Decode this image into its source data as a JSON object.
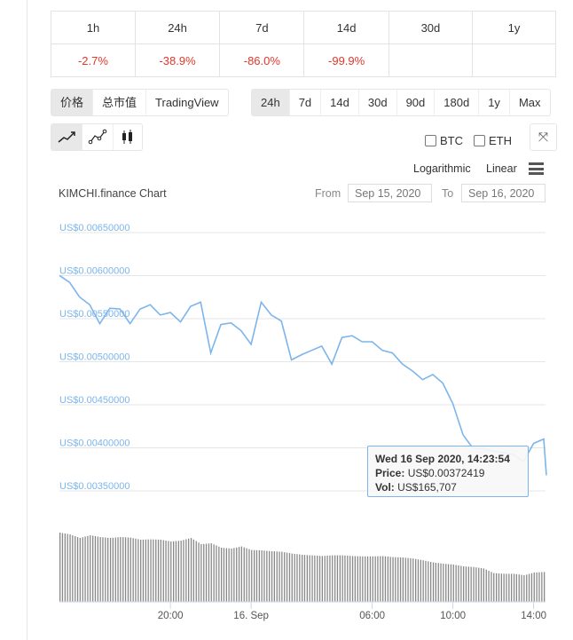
{
  "performance": {
    "headers": [
      "1h",
      "24h",
      "7d",
      "14d",
      "30d",
      "1y"
    ],
    "values": [
      "-2.7%",
      "-38.9%",
      "-86.0%",
      "-99.9%",
      "",
      ""
    ]
  },
  "chart_type_tabs": [
    {
      "label": "价格",
      "active": true
    },
    {
      "label": "总市值",
      "active": false
    },
    {
      "label": "TradingView",
      "active": false
    }
  ],
  "range_tabs": [
    {
      "label": "24h",
      "active": true
    },
    {
      "label": "7d"
    },
    {
      "label": "14d"
    },
    {
      "label": "30d"
    },
    {
      "label": "90d"
    },
    {
      "label": "180d"
    },
    {
      "label": "1y"
    },
    {
      "label": "Max"
    }
  ],
  "style_buttons": [
    {
      "icon": "line-chart-icon",
      "active": true
    },
    {
      "icon": "line-markers-icon"
    },
    {
      "icon": "candlestick-icon"
    }
  ],
  "compare": {
    "btc": "BTC",
    "eth": "ETH"
  },
  "scale": {
    "log": "Logarithmic",
    "linear": "Linear"
  },
  "chart_header": {
    "title": "KIMCHI.finance Chart",
    "from_label": "From",
    "from_value": "Sep 15, 2020",
    "to_label": "To",
    "to_value": "Sep 16, 2020"
  },
  "tooltip": {
    "date": "Wed 16 Sep 2020, 14:23:54",
    "price_label": "Price:",
    "price": "US$0.00372419",
    "vol_label": "Vol:",
    "vol": "US$165,707"
  },
  "colors": {
    "line": "#7cb5ec",
    "volume": "#888888",
    "negative": "#e0372c",
    "axis_label": "#7cb5ec"
  },
  "chart_data": {
    "type": "line",
    "yaxis_ticks": [
      "US$0.00650000",
      "US$0.00600000",
      "US$0.00550000",
      "US$0.00500000",
      "US$0.00450000",
      "US$0.00400000",
      "US$0.00350000"
    ],
    "ylim": [
      0.0035,
      0.0065
    ],
    "xaxis_ticks": [
      "20:00",
      "16. Sep",
      "06:00",
      "10:00",
      "14:00"
    ],
    "xaxis_tick_times": [
      "2020-09-15 20:00",
      "2020-09-16 00:00",
      "2020-09-16 06:00",
      "2020-09-16 10:00",
      "2020-09-16 14:00"
    ],
    "grid": true,
    "x": [
      "2020-09-15 14:30",
      "2020-09-15 15:00",
      "2020-09-15 15:30",
      "2020-09-15 16:00",
      "2020-09-15 16:30",
      "2020-09-15 17:00",
      "2020-09-15 17:30",
      "2020-09-15 18:00",
      "2020-09-15 18:30",
      "2020-09-15 19:00",
      "2020-09-15 19:30",
      "2020-09-15 20:00",
      "2020-09-15 20:30",
      "2020-09-15 21:00",
      "2020-09-15 21:30",
      "2020-09-15 22:00",
      "2020-09-15 22:30",
      "2020-09-15 23:00",
      "2020-09-15 23:30",
      "2020-09-16 00:00",
      "2020-09-16 00:30",
      "2020-09-16 01:00",
      "2020-09-16 01:30",
      "2020-09-16 02:00",
      "2020-09-16 02:30",
      "2020-09-16 03:00",
      "2020-09-16 03:30",
      "2020-09-16 04:00",
      "2020-09-16 04:30",
      "2020-09-16 05:00",
      "2020-09-16 05:30",
      "2020-09-16 06:00",
      "2020-09-16 06:30",
      "2020-09-16 07:00",
      "2020-09-16 07:30",
      "2020-09-16 08:00",
      "2020-09-16 08:30",
      "2020-09-16 09:00",
      "2020-09-16 09:30",
      "2020-09-16 10:00",
      "2020-09-16 10:30",
      "2020-09-16 11:00",
      "2020-09-16 11:30",
      "2020-09-16 12:00",
      "2020-09-16 12:30",
      "2020-09-16 13:00",
      "2020-09-16 13:30",
      "2020-09-16 14:00",
      "2020-09-16 14:30",
      "2020-09-16 14:38"
    ],
    "price": [
      0.00594,
      0.00586,
      0.00569,
      0.0056,
      0.00538,
      0.00556,
      0.00555,
      0.00538,
      0.00555,
      0.0056,
      0.00548,
      0.00551,
      0.0054,
      0.00558,
      0.00563,
      0.00504,
      0.00537,
      0.00539,
      0.0053,
      0.00514,
      0.00563,
      0.00548,
      0.00541,
      0.00496,
      0.00502,
      0.00507,
      0.00512,
      0.00491,
      0.00522,
      0.00524,
      0.00517,
      0.00517,
      0.00507,
      0.00504,
      0.00491,
      0.00483,
      0.00473,
      0.00479,
      0.00469,
      0.00445,
      0.00409,
      0.00393,
      0.00393,
      0.0039,
      0.00388,
      0.00386,
      0.00378,
      0.00399,
      0.00404,
      0.00362
    ],
    "volume": [
      390000,
      380000,
      360000,
      375000,
      365000,
      360000,
      365000,
      362000,
      350000,
      352000,
      350000,
      340000,
      345000,
      360000,
      325000,
      330000,
      305000,
      300000,
      312000,
      292000,
      290000,
      285000,
      282000,
      272000,
      265000,
      262000,
      258000,
      262000,
      262000,
      258000,
      256000,
      256000,
      258000,
      252000,
      250000,
      244000,
      234000,
      222000,
      215000,
      210000,
      200000,
      196000,
      188000,
      162000,
      158000,
      158000,
      150000,
      165000,
      168000,
      165707
    ]
  }
}
